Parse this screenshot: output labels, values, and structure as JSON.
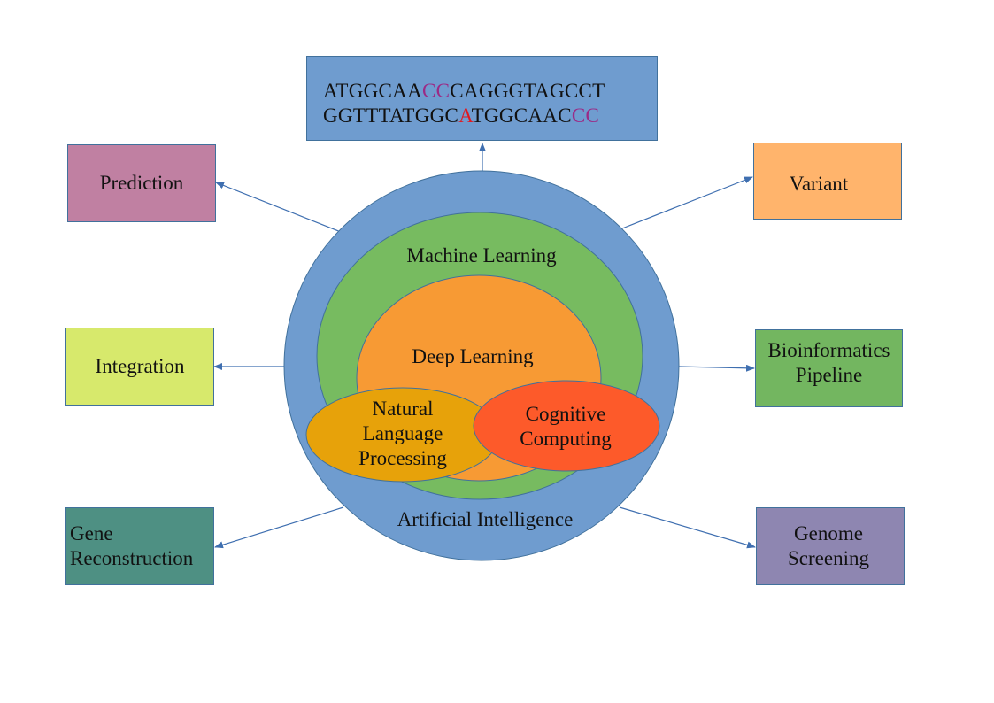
{
  "sequence": {
    "line1": [
      "ATGGCAA",
      "CC",
      "CAGGGTAGCCT"
    ],
    "line2": [
      "GGTTTATGGC",
      "A",
      "TGGCAAC",
      "CC"
    ]
  },
  "circles": {
    "artificial_intelligence": "Artificial Intelligence",
    "machine_learning": "Machine Learning",
    "deep_learning": "Deep Learning",
    "nlp": [
      "Natural",
      "Language",
      "Processing"
    ],
    "cognitive": [
      "Cognitive",
      "Computing"
    ]
  },
  "boxes": {
    "prediction": [
      "Prediction"
    ],
    "integration": [
      "Integration"
    ],
    "gene_reconstruction": [
      "Gene",
      "Reconstruction"
    ],
    "variant": [
      "Variant"
    ],
    "bioinformatics_pipeline": [
      "Bioinformatics",
      "Pipeline"
    ],
    "genome_screening": [
      "Genome",
      "Screening"
    ]
  },
  "colors": {
    "outer_circle": "#6f9ccf",
    "machine_learning": "#77bb60",
    "deep_learning": "#f79a34",
    "nlp": "#e7a20a",
    "cognitive": "#fd5a2a",
    "prediction": "#c080a2",
    "integration": "#d7e96c",
    "gene_reconstruction": "#4e9083",
    "variant": "#ffb46c",
    "bioinformatics_pipeline": "#73b660",
    "genome_screening": "#8e86b1",
    "arrow": "#3f6fb0",
    "highlight_purple": "#9b2b86",
    "highlight_red": "#e2171e"
  }
}
